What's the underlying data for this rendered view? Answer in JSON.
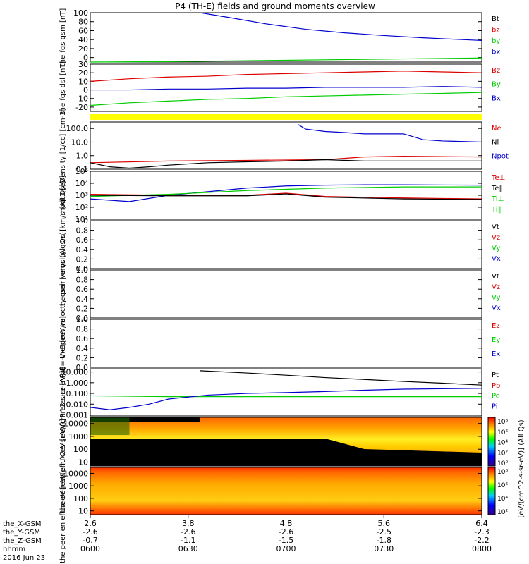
{
  "title": "P4 (TH-E) fields and ground moments overview",
  "colors": {
    "black": "#000000",
    "red": "#dd0000",
    "green": "#00cc00",
    "blue": "#0000cc",
    "yellow": "#ffff00"
  },
  "chart_data": [
    {
      "type": "line",
      "ylabel": "the fgs gsm [nT]",
      "ylim": [
        -10,
        100
      ],
      "yticks": [
        "100",
        "80",
        "60",
        "40",
        "20",
        "0"
      ],
      "legend": [
        {
          "label": "Bt",
          "color": "#000000"
        },
        {
          "label": "bz",
          "color": "#dd0000"
        },
        {
          "label": "by",
          "color": "#00cc00"
        },
        {
          "label": "bx",
          "color": "#0000cc"
        }
      ],
      "series": [
        {
          "color": "#0000cc",
          "x": [
            0.28,
            0.35,
            0.45,
            0.55,
            0.65,
            0.75,
            0.85,
            0.95,
            1.0
          ],
          "y": [
            100,
            90,
            75,
            63,
            55,
            49,
            44,
            40,
            38
          ]
        },
        {
          "color": "#00cc00",
          "x": [
            0,
            0.2,
            0.4,
            0.6,
            0.8,
            1.0
          ],
          "y": [
            -10,
            -9,
            -7,
            -5,
            -3,
            -1
          ]
        }
      ]
    },
    {
      "type": "line",
      "ylabel": "the fgs dsl [nT]",
      "ylim": [
        -25,
        30
      ],
      "yticks": [
        "30",
        "20",
        "10",
        "0",
        "-10",
        "-20"
      ],
      "legend": [
        {
          "label": "Bz",
          "color": "#dd0000"
        },
        {
          "label": "By",
          "color": "#00cc00"
        },
        {
          "label": "Bx",
          "color": "#0000cc"
        }
      ],
      "series": [
        {
          "color": "#dd0000",
          "x": [
            0,
            0.1,
            0.2,
            0.3,
            0.4,
            0.5,
            0.6,
            0.7,
            0.8,
            0.9,
            1.0
          ],
          "y": [
            10,
            13,
            15,
            16,
            18,
            19,
            20,
            21,
            22,
            21,
            20
          ]
        },
        {
          "color": "#00cc00",
          "x": [
            0,
            0.1,
            0.2,
            0.3,
            0.4,
            0.5,
            0.6,
            0.7,
            0.8,
            0.9,
            1.0
          ],
          "y": [
            -18,
            -15,
            -13,
            -11,
            -10,
            -8,
            -7,
            -6,
            -5,
            -4,
            -3
          ]
        },
        {
          "color": "#0000cc",
          "x": [
            0,
            0.1,
            0.2,
            0.3,
            0.4,
            0.5,
            0.6,
            0.7,
            0.8,
            0.9,
            1.0
          ],
          "y": [
            0,
            0,
            1,
            1,
            2,
            2,
            3,
            3,
            3,
            4,
            3
          ]
        }
      ]
    },
    {
      "type": "line",
      "ylabel": "Density [1/cc] [cm-3]",
      "yscale": "log",
      "ylim": [
        0.1,
        300
      ],
      "yticks": [
        "100.0",
        "10.0",
        "1.0",
        "0.1"
      ],
      "legend": [
        {
          "label": "Ne",
          "color": "#dd0000"
        },
        {
          "label": "Ni",
          "color": "#000000"
        },
        {
          "label": "Npot",
          "color": "#0000cc"
        }
      ],
      "series": [
        {
          "color": "#0000cc",
          "x": [
            0.53,
            0.55,
            0.6,
            0.65,
            0.7,
            0.75,
            0.8,
            0.85,
            0.9,
            1.0
          ],
          "y": [
            200,
            90,
            60,
            50,
            40,
            40,
            40,
            15,
            12,
            10
          ]
        },
        {
          "color": "#dd0000",
          "x": [
            0,
            0.2,
            0.4,
            0.6,
            0.7,
            0.8,
            1.0
          ],
          "y": [
            0.3,
            0.4,
            0.45,
            0.5,
            0.8,
            0.9,
            0.8
          ]
        },
        {
          "color": "#000000",
          "x": [
            0,
            0.05,
            0.1,
            0.15,
            0.2,
            0.3,
            0.4,
            0.5,
            0.6,
            0.7,
            0.8,
            1.0
          ],
          "y": [
            0.3,
            0.15,
            0.12,
            0.15,
            0.2,
            0.3,
            0.35,
            0.4,
            0.5,
            0.4,
            0.4,
            0.4
          ]
        }
      ]
    },
    {
      "type": "line",
      "ylabel": "moqt3 [eV]",
      "yscale": "log",
      "ylim": [
        10,
        100000
      ],
      "yticks": [
        "10^5",
        "10^4",
        "10^3",
        "10^2",
        "10^1"
      ],
      "legend": [
        {
          "label": "Te⊥",
          "color": "#dd0000"
        },
        {
          "label": "Te‖",
          "color": "#000000"
        },
        {
          "label": "Ti⊥",
          "color": "#00cc00"
        },
        {
          "label": "Ti‖",
          "color": "#00cc00"
        }
      ],
      "series": [
        {
          "color": "#0000cc",
          "x": [
            0,
            0.1,
            0.2,
            0.3,
            0.4,
            0.5,
            0.6,
            0.7,
            0.8,
            1.0
          ],
          "y": [
            500,
            300,
            1000,
            2000,
            4000,
            6000,
            7000,
            7500,
            7500,
            7000
          ]
        },
        {
          "color": "#00cc00",
          "x": [
            0,
            0.2,
            0.4,
            0.6,
            0.8,
            1.0
          ],
          "y": [
            800,
            1200,
            2500,
            4000,
            5000,
            5000
          ]
        },
        {
          "color": "#dd0000",
          "x": [
            0,
            0.2,
            0.4,
            0.5,
            0.6,
            0.8,
            1.0
          ],
          "y": [
            1200,
            1000,
            1000,
            1500,
            800,
            600,
            500
          ]
        },
        {
          "color": "#000000",
          "x": [
            0,
            0.2,
            0.4,
            0.5,
            0.6,
            0.8,
            1.0
          ],
          "y": [
            1000,
            900,
            900,
            1300,
            700,
            500,
            450
          ]
        }
      ]
    },
    {
      "type": "line",
      "ylabel": "the peir velocity gsm [km/s (All Qs)]",
      "ylim": [
        0,
        1
      ],
      "yticks": [
        "1.0",
        "0.8",
        "0.6",
        "0.4",
        "0.2",
        "0.0"
      ],
      "legend": [
        {
          "label": "Vt",
          "color": "#000000"
        },
        {
          "label": "Vz",
          "color": "#dd0000"
        },
        {
          "label": "Vy",
          "color": "#00cc00"
        },
        {
          "label": "Vx",
          "color": "#0000cc"
        }
      ],
      "series": []
    },
    {
      "type": "line",
      "ylabel": "the peer velocity gsm [km/s (All Qs)]",
      "ylim": [
        0,
        1
      ],
      "yticks": [
        "1.0",
        "0.8",
        "0.6",
        "0.4",
        "0.2",
        "0.0"
      ],
      "legend": [
        {
          "label": "Vt",
          "color": "#000000"
        },
        {
          "label": "Vz",
          "color": "#dd0000"
        },
        {
          "label": "Vy",
          "color": "#00cc00"
        },
        {
          "label": "Vx",
          "color": "#0000cc"
        }
      ],
      "series": []
    },
    {
      "type": "line",
      "ylabel": "E=-VxB [mV/m]",
      "ylim": [
        0,
        1
      ],
      "yticks": [
        "1.0",
        "0.8",
        "0.6",
        "0.4",
        "0.2",
        "0.0"
      ],
      "legend": [
        {
          "label": "Ez",
          "color": "#dd0000"
        },
        {
          "label": "Ey",
          "color": "#00cc00"
        },
        {
          "label": "Ex",
          "color": "#0000cc"
        }
      ],
      "series": []
    },
    {
      "type": "line",
      "ylabel": "Pressure [nPa]",
      "yscale": "log",
      "ylim": [
        0.0008,
        20
      ],
      "yticks": [
        "10.000",
        "1.000",
        "0.100",
        "0.010",
        "0.001"
      ],
      "legend": [
        {
          "label": "Pt",
          "color": "#000000"
        },
        {
          "label": "Pb",
          "color": "#dd0000"
        },
        {
          "label": "Pe",
          "color": "#00cc00"
        },
        {
          "label": "Pi",
          "color": "#0000cc"
        }
      ],
      "series": [
        {
          "color": "#000000",
          "x": [
            0.28,
            0.4,
            0.5,
            0.6,
            0.7,
            0.8,
            0.9,
            1.0
          ],
          "y": [
            13,
            8,
            5,
            3,
            2,
            1.3,
            0.9,
            0.6
          ]
        },
        {
          "color": "#00cc00",
          "x": [
            0,
            0.2,
            0.4,
            0.6,
            0.8,
            1.0
          ],
          "y": [
            0.06,
            0.05,
            0.05,
            0.05,
            0.05,
            0.05
          ]
        },
        {
          "color": "#0000cc",
          "x": [
            0,
            0.05,
            0.1,
            0.15,
            0.2,
            0.3,
            0.4,
            0.5,
            0.6,
            0.7,
            0.8,
            1.0
          ],
          "y": [
            0.005,
            0.003,
            0.005,
            0.01,
            0.03,
            0.07,
            0.1,
            0.12,
            0.15,
            0.2,
            0.25,
            0.3
          ]
        }
      ]
    },
    {
      "type": "heatmap",
      "ylabel": "the peir en eflux eV [eV/(cm^2-s-sr-eV)]",
      "yscale": "log",
      "ylim": [
        5,
        30000
      ],
      "yticks": [
        "10000",
        "1000",
        "100",
        "10"
      ],
      "colorbar_ticks": [
        "10^8",
        "10^6",
        "10^4",
        "10^2",
        "10^0"
      ]
    },
    {
      "type": "heatmap",
      "ylabel": "the peer en eflux eV [eV/(cm^2-s-sr-eV)]",
      "yscale": "log",
      "ylim": [
        5,
        30000
      ],
      "yticks": [
        "10000",
        "1000",
        "100",
        "10"
      ],
      "colorbar_ticks": [
        "10^8",
        "10^6",
        "10^4",
        "10^2"
      ]
    }
  ],
  "colorbar_label": "[eV/(cm^2-s-sr-eV)] (All Qs)",
  "xaxis": {
    "row_labels": [
      "the_X-GSM",
      "the_Y-GSM",
      "the_Z-GSM",
      "hhmm",
      "2016 Jun 23"
    ],
    "ticks": [
      {
        "x": "2.6",
        "y": "-2.6",
        "z": "-0.7",
        "t": "0600"
      },
      {
        "x": "3.8",
        "y": "-2.6",
        "z": "-1.1",
        "t": "0630"
      },
      {
        "x": "4.8",
        "y": "-2.6",
        "z": "-1.5",
        "t": "0700"
      },
      {
        "x": "5.6",
        "y": "-2.5",
        "z": "-1.8",
        "t": "0730"
      },
      {
        "x": "6.4",
        "y": "-2.3",
        "z": "-2.2",
        "t": "0800"
      }
    ]
  }
}
